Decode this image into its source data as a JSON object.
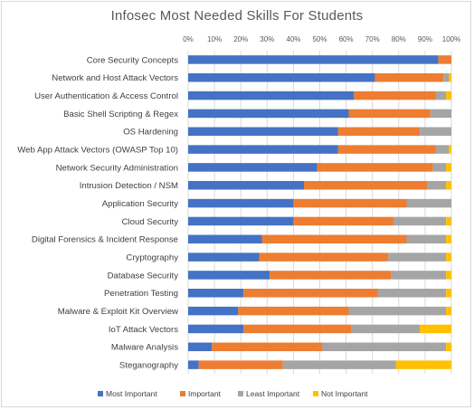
{
  "chart_data": {
    "type": "bar",
    "orientation": "horizontal",
    "stacked": "100%",
    "title": "Infosec Most Needed Skills For Students",
    "x_ticks": [
      "0%",
      "10%",
      "20%",
      "30%",
      "40%",
      "50%",
      "60%",
      "70%",
      "80%",
      "90%",
      "100%"
    ],
    "xlim": [
      0,
      100
    ],
    "grid": true,
    "legend_position": "bottom",
    "categories": [
      "Core Security Concepts",
      "Network and Host Attack Vectors",
      "User Authentication & Access Control",
      "Basic Shell Scripting & Regex",
      "OS Hardening",
      "Web App Attack Vectors (OWASP Top 10)",
      "Network Security Administration",
      "Intrusion Detection / NSM",
      "Application Security",
      "Cloud Security",
      "Digital Forensics & Incident Response",
      "Cryptography",
      "Database Security",
      "Penetration Testing",
      "Malware & Exploit Kit Overview",
      "IoT Attack Vectors",
      "Malware Analysis",
      "Steganography"
    ],
    "series": [
      {
        "name": "Most Important",
        "color": "#4472C4",
        "values": [
          95,
          71,
          63,
          61,
          57,
          57,
          49,
          44,
          40,
          40,
          28,
          27,
          31,
          21,
          19,
          21,
          9,
          4
        ]
      },
      {
        "name": "Important",
        "color": "#ED7D31",
        "values": [
          5,
          26,
          31,
          31,
          31,
          37,
          44,
          47,
          43,
          38,
          55,
          49,
          46,
          51,
          42,
          41,
          42,
          32
        ]
      },
      {
        "name": "Least Important",
        "color": "#A5A5A5",
        "values": [
          0,
          2,
          4,
          8,
          12,
          5,
          5,
          7,
          17,
          20,
          15,
          22,
          21,
          26,
          37,
          26,
          47,
          43
        ]
      },
      {
        "name": "Not Important",
        "color": "#FFC000",
        "values": [
          0,
          1,
          2,
          0,
          0,
          1,
          2,
          2,
          0,
          2,
          2,
          2,
          2,
          2,
          2,
          12,
          2,
          21
        ]
      }
    ]
  }
}
